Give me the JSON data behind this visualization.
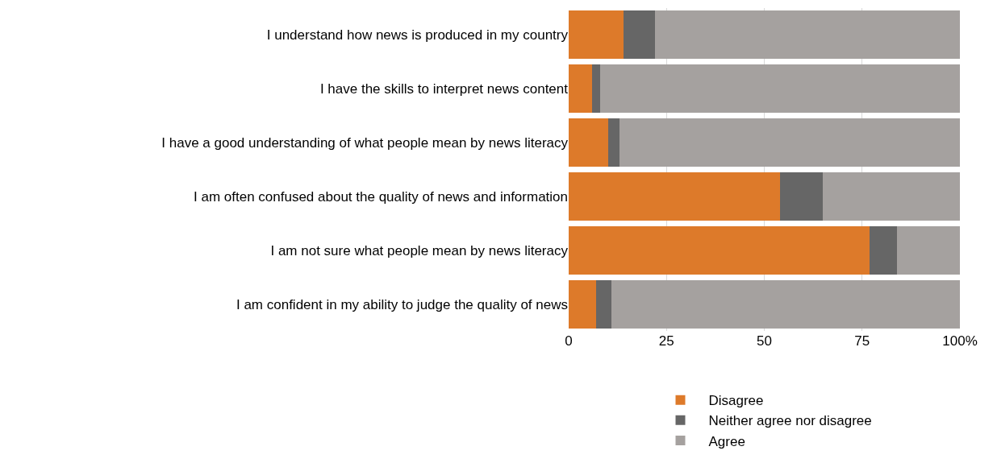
{
  "chart_data": {
    "type": "bar",
    "orientation": "horizontal",
    "stacked": true,
    "categories": [
      "I understand how news is produced in my country",
      "I have the skills to interpret news content",
      "I have a good understanding of what people mean by news literacy",
      "I am often confused about the quality of news and information",
      "I am not sure what people mean by news literacy",
      "I am confident in my ability to judge the quality of news"
    ],
    "series": [
      {
        "name": "Disagree",
        "color": "#dd7a2a",
        "values": [
          14,
          6,
          10,
          54,
          77,
          7
        ]
      },
      {
        "name": "Neither agree nor disagree",
        "color": "#666666",
        "values": [
          8,
          2,
          3,
          11,
          7,
          4
        ]
      },
      {
        "name": "Agree",
        "color": "#a5a19f",
        "values": [
          78,
          92,
          87,
          35,
          16,
          89
        ]
      }
    ],
    "xlim": [
      0,
      100
    ],
    "xticks": [
      0,
      25,
      50,
      75,
      {
        "value": 100,
        "label": "100%"
      }
    ],
    "grid": "x",
    "legend": "bottom"
  }
}
